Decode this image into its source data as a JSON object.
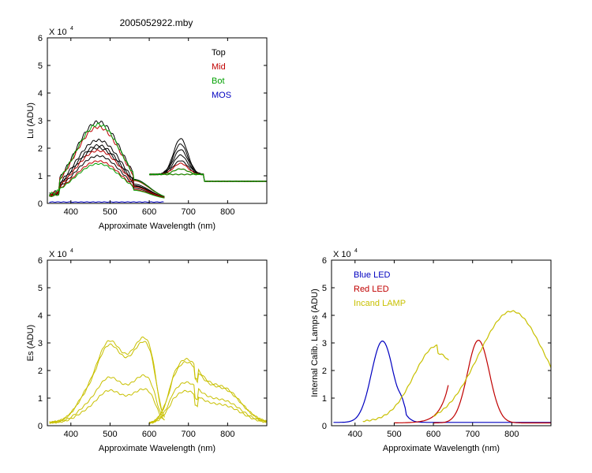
{
  "figure": {
    "title": "2005052922.mby"
  },
  "chart_data": [
    {
      "type": "line",
      "id": "lu",
      "title": "2005052922.mby",
      "xlabel": "Approximate Wavelength (nm)",
      "ylabel": "Lu (ADU)",
      "multiplier": "X 10",
      "multiplier_exp": "4",
      "xlim": [
        340,
        900
      ],
      "ylim": [
        0,
        6
      ],
      "xticks": [
        400,
        500,
        600,
        700,
        800
      ],
      "yticks": [
        0,
        1,
        2,
        3,
        4,
        5,
        6
      ],
      "legend": [
        {
          "label": "Top",
          "color": "#000000"
        },
        {
          "label": "Mid",
          "color": "#c00000"
        },
        {
          "label": "Bot",
          "color": "#00a000"
        },
        {
          "label": "MOS",
          "color": "#0000c0"
        }
      ],
      "series": [
        {
          "color": "#000000",
          "peak": 2.9,
          "red_peak": 2.3,
          "near_ir": 0.8,
          "group": "Top"
        },
        {
          "color": "#000000",
          "peak": 2.2,
          "red_peak": 2.1,
          "near_ir": 0.8,
          "group": "Top"
        },
        {
          "color": "#000000",
          "peak": 2.0,
          "red_peak": 1.9,
          "near_ir": 0.8,
          "group": "Top"
        },
        {
          "color": "#000000",
          "peak": 1.9,
          "red_peak": 1.7,
          "near_ir": 0.8,
          "group": "Top"
        },
        {
          "color": "#000000",
          "peak": 1.6,
          "red_peak": 1.5,
          "near_ir": 0.8,
          "group": "Top"
        },
        {
          "color": "#c00000",
          "peak": 2.7,
          "red_peak": 1.4,
          "near_ir": 0.8,
          "group": "Mid"
        },
        {
          "color": "#c00000",
          "peak": 1.8,
          "red_peak": 1.2,
          "near_ir": 0.8,
          "group": "Mid"
        },
        {
          "color": "#c00000",
          "peak": 1.4,
          "red_peak": 1.0,
          "near_ir": 0.8,
          "group": "Mid"
        },
        {
          "color": "#00a000",
          "peak": 2.8,
          "red_peak": 1.2,
          "near_ir": 0.8,
          "group": "Bot"
        },
        {
          "color": "#00a000",
          "peak": 1.3,
          "red_peak": 1.0,
          "near_ir": 0.8,
          "group": "Bot"
        },
        {
          "color": "#0000c0",
          "peak": 0.05,
          "red_peak": 0.0,
          "near_ir": 0.0,
          "group": "MOS"
        }
      ]
    },
    {
      "type": "line",
      "id": "es",
      "title": "",
      "xlabel": "Approximate Wavelength (nm)",
      "ylabel": "Es (ADU)",
      "multiplier": "X 10",
      "multiplier_exp": "4",
      "xlim": [
        340,
        900
      ],
      "ylim": [
        0,
        6
      ],
      "xticks": [
        400,
        500,
        600,
        700,
        800
      ],
      "yticks": [
        0,
        1,
        2,
        3,
        4,
        5,
        6
      ],
      "legend": [],
      "series": [
        {
          "color": "#c8c000",
          "plateau": 3.15,
          "ir_peak": 2.2
        },
        {
          "color": "#c8c000",
          "plateau": 3.0,
          "ir_peak": 2.1
        },
        {
          "color": "#c8c000",
          "plateau": 1.75,
          "ir_peak": 1.4
        },
        {
          "color": "#c8c000",
          "plateau": 1.25,
          "ir_peak": 1.1
        }
      ]
    },
    {
      "type": "line",
      "id": "lamps",
      "title": "",
      "xlabel": "Approximate Wavelength (nm)",
      "ylabel": "Internal Calib. Lamps (ADU)",
      "multiplier": "X 10",
      "multiplier_exp": "4",
      "xlim": [
        340,
        900
      ],
      "ylim": [
        0,
        6
      ],
      "xticks": [
        400,
        500,
        600,
        700,
        800
      ],
      "yticks": [
        0,
        1,
        2,
        3,
        4,
        5,
        6
      ],
      "legend": [
        {
          "label": "Blue LED",
          "color": "#0000c0"
        },
        {
          "label": "Red LED",
          "color": "#c00000"
        },
        {
          "label": "Incand LAMP",
          "color": "#c8c000"
        }
      ],
      "series": [
        {
          "name": "Blue LED",
          "color": "#0000c0",
          "peak_nm": 470,
          "peak": 2.95
        },
        {
          "name": "Red LED",
          "color": "#c00000",
          "peak_nm": 715,
          "peak": 3.1
        },
        {
          "name": "Incand LAMP",
          "color": "#c8c000",
          "peak_nm": 800,
          "peak": 4.05
        }
      ]
    }
  ]
}
